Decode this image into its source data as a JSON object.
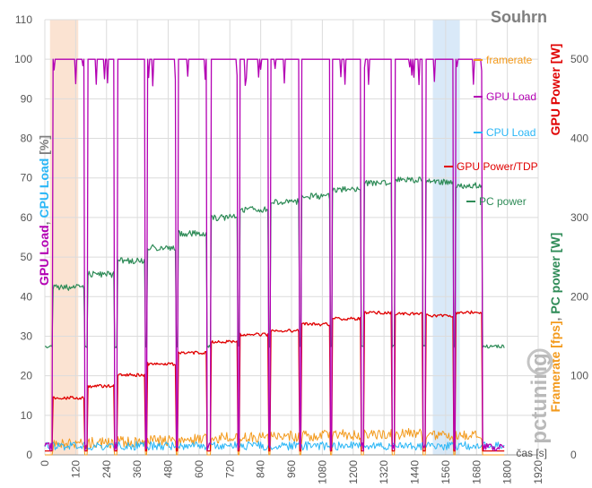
{
  "chart_data": {
    "type": "line",
    "title": "Souhrn",
    "xlabel": "čas [s]",
    "ylabel_left": [
      "GPU Load",
      ", ",
      "CPU Load",
      " [%]"
    ],
    "ylabel_right_outer": [
      "GPU Power",
      " [W]"
    ],
    "ylabel_right_inner": [
      "Framerate [fps]",
      ", ",
      "PC power [W]"
    ],
    "watermark": "pctuning",
    "xlim": [
      0,
      1920
    ],
    "ylim_left": [
      0,
      110
    ],
    "ylim_right": [
      0,
      550
    ],
    "x_ticks": [
      0,
      120,
      240,
      360,
      480,
      600,
      720,
      840,
      960,
      1080,
      1200,
      1320,
      1440,
      1560,
      1680,
      1800,
      1920
    ],
    "y_ticks_left": [
      0,
      10,
      20,
      30,
      40,
      50,
      60,
      70,
      80,
      90,
      100,
      110
    ],
    "y_ticks_right": [
      0,
      100,
      200,
      300,
      400,
      500
    ],
    "grid": true,
    "legend_position": "top-right",
    "shaded_regions": [
      {
        "x0": 20,
        "x1": 130,
        "color": "#fbe3d2"
      },
      {
        "x0": 1510,
        "x1": 1615,
        "color": "#d9e9f8"
      }
    ],
    "segments": [
      {
        "start": 30,
        "end": 155,
        "pc_power": 212,
        "gpu_power": 72,
        "fps": 12
      },
      {
        "start": 165,
        "end": 270,
        "pc_power": 228,
        "gpu_power": 87,
        "fps": 14
      },
      {
        "start": 282,
        "end": 390,
        "pc_power": 245,
        "gpu_power": 101,
        "fps": 15
      },
      {
        "start": 400,
        "end": 510,
        "pc_power": 262,
        "gpu_power": 115,
        "fps": 17
      },
      {
        "start": 520,
        "end": 630,
        "pc_power": 280,
        "gpu_power": 129,
        "fps": 19
      },
      {
        "start": 645,
        "end": 750,
        "pc_power": 300,
        "gpu_power": 143,
        "fps": 20
      },
      {
        "start": 760,
        "end": 870,
        "pc_power": 310,
        "gpu_power": 152,
        "fps": 21
      },
      {
        "start": 880,
        "end": 990,
        "pc_power": 320,
        "gpu_power": 157,
        "fps": 22
      },
      {
        "start": 1000,
        "end": 1110,
        "pc_power": 327,
        "gpu_power": 165,
        "fps": 23
      },
      {
        "start": 1120,
        "end": 1230,
        "pc_power": 335,
        "gpu_power": 172,
        "fps": 24
      },
      {
        "start": 1242,
        "end": 1350,
        "pc_power": 343,
        "gpu_power": 180,
        "fps": 25
      },
      {
        "start": 1362,
        "end": 1470,
        "pc_power": 348,
        "gpu_power": 178,
        "fps": 25
      },
      {
        "start": 1482,
        "end": 1590,
        "pc_power": 345,
        "gpu_power": 176,
        "fps": 24
      },
      {
        "start": 1600,
        "end": 1700,
        "pc_power": 340,
        "gpu_power": 180,
        "fps": 24
      }
    ],
    "idle": {
      "gpu_load": 1,
      "cpu_load": 1.5,
      "pc_power": 137,
      "gpu_power": 5,
      "fps": 0
    },
    "series": [
      {
        "name": "framerate",
        "color": "#f39a1c"
      },
      {
        "name": "GPU Load",
        "color": "#b300b3"
      },
      {
        "name": "CPU  Load",
        "color": "#29b6f6"
      },
      {
        "name": "GPU Power/TDP",
        "color": "#e00000"
      },
      {
        "name": "PC power",
        "color": "#2e8b57"
      }
    ]
  },
  "colors": {
    "gpu_load": "#b300b3",
    "cpu_load": "#29b6f6",
    "framerate": "#f39a1c",
    "gpu_power": "#e00000",
    "pc_power": "#2e8b57",
    "grid": "#dcdcdc",
    "watermark": "#b9b9b9"
  }
}
